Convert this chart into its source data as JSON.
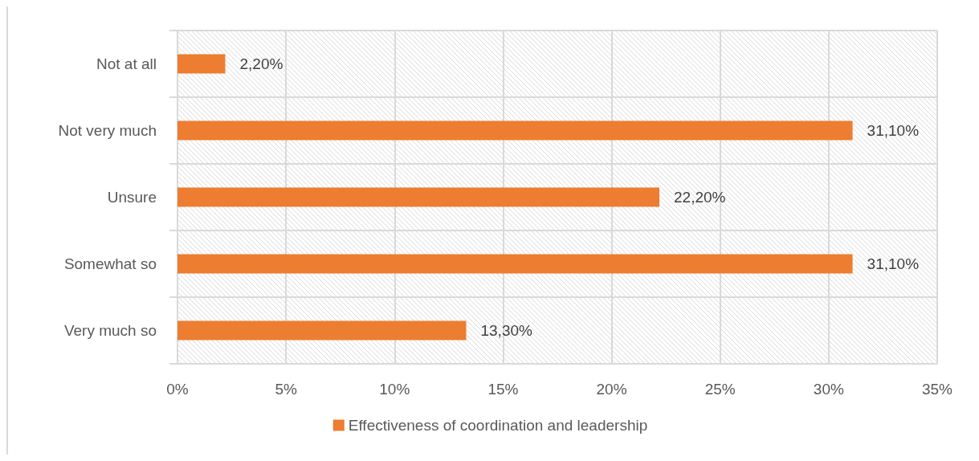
{
  "chart_data": {
    "type": "bar",
    "orientation": "horizontal",
    "categories": [
      "Not at all",
      "Not very much",
      "Unsure",
      "Somewhat so",
      "Very much so"
    ],
    "series": [
      {
        "name": "Effectiveness of coordination and leadership",
        "color": "#ed7d31",
        "values": [
          2.2,
          31.1,
          22.2,
          31.1,
          13.3
        ],
        "value_labels": [
          "2,20%",
          "31,10%",
          "22,20%",
          "31,10%",
          "13,30%"
        ]
      }
    ],
    "xlim": [
      0,
      35
    ],
    "xticks": [
      {
        "value": 0,
        "label": "0%"
      },
      {
        "value": 5,
        "label": "5%"
      },
      {
        "value": 10,
        "label": "10%"
      },
      {
        "value": 15,
        "label": "15%"
      },
      {
        "value": 20,
        "label": "20%"
      },
      {
        "value": 25,
        "label": "25%"
      },
      {
        "value": 30,
        "label": "30%"
      },
      {
        "value": 35,
        "label": "35%"
      }
    ],
    "grid": true,
    "legend": "bottom"
  }
}
